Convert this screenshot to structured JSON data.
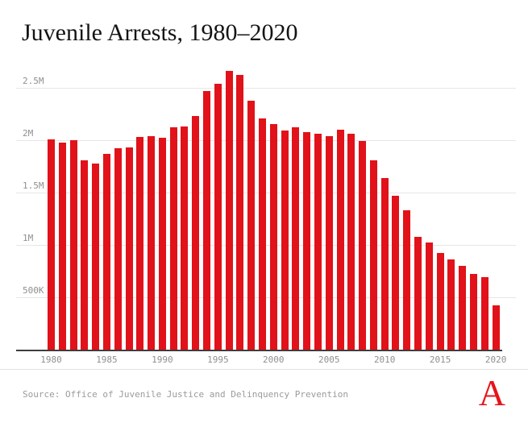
{
  "title": "Juvenile Arrests, 1980–2020",
  "footer": {
    "source": "Source: Office of Juvenile Justice and Delinquency Prevention",
    "logo_letter": "A"
  },
  "colors": {
    "bar": "#e11219",
    "logo": "#e7131a",
    "grid": "#e6e6e6",
    "axis": "#3d3d3d",
    "tick_label": "#8f8f8f",
    "title_text": "#141414"
  },
  "chart_data": {
    "type": "bar",
    "title": "Juvenile Arrests, 1980–2020",
    "xlabel": "",
    "ylabel": "",
    "unit": "arrests per year",
    "x": [
      1980,
      1981,
      1982,
      1983,
      1984,
      1985,
      1986,
      1987,
      1988,
      1989,
      1990,
      1991,
      1992,
      1993,
      1994,
      1995,
      1996,
      1997,
      1998,
      1999,
      2000,
      2001,
      2002,
      2003,
      2004,
      2005,
      2006,
      2007,
      2008,
      2009,
      2010,
      2011,
      2012,
      2013,
      2014,
      2015,
      2016,
      2017,
      2018,
      2019,
      2020
    ],
    "values_millions": [
      2.01,
      1.98,
      2.0,
      1.81,
      1.78,
      1.87,
      1.92,
      1.93,
      2.03,
      2.04,
      2.02,
      2.12,
      2.13,
      2.23,
      2.47,
      2.54,
      2.66,
      2.62,
      2.38,
      2.21,
      2.15,
      2.09,
      2.12,
      2.08,
      2.06,
      2.04,
      2.1,
      2.06,
      1.99,
      1.81,
      1.64,
      1.47,
      1.33,
      1.08,
      1.02,
      0.92,
      0.86,
      0.8,
      0.72,
      0.69,
      0.42
    ],
    "ylim": [
      0,
      2.75
    ],
    "y_ticks": [
      {
        "value": 0.5,
        "label": "500K"
      },
      {
        "value": 1.0,
        "label": "1M"
      },
      {
        "value": 1.5,
        "label": "1.5M"
      },
      {
        "value": 2.0,
        "label": "2M"
      },
      {
        "value": 2.5,
        "label": "2.5M"
      }
    ],
    "x_tick_years": [
      "1980",
      "1985",
      "1990",
      "1995",
      "2000",
      "2005",
      "2010",
      "2015",
      "2020"
    ],
    "grid": true,
    "legend": false
  }
}
